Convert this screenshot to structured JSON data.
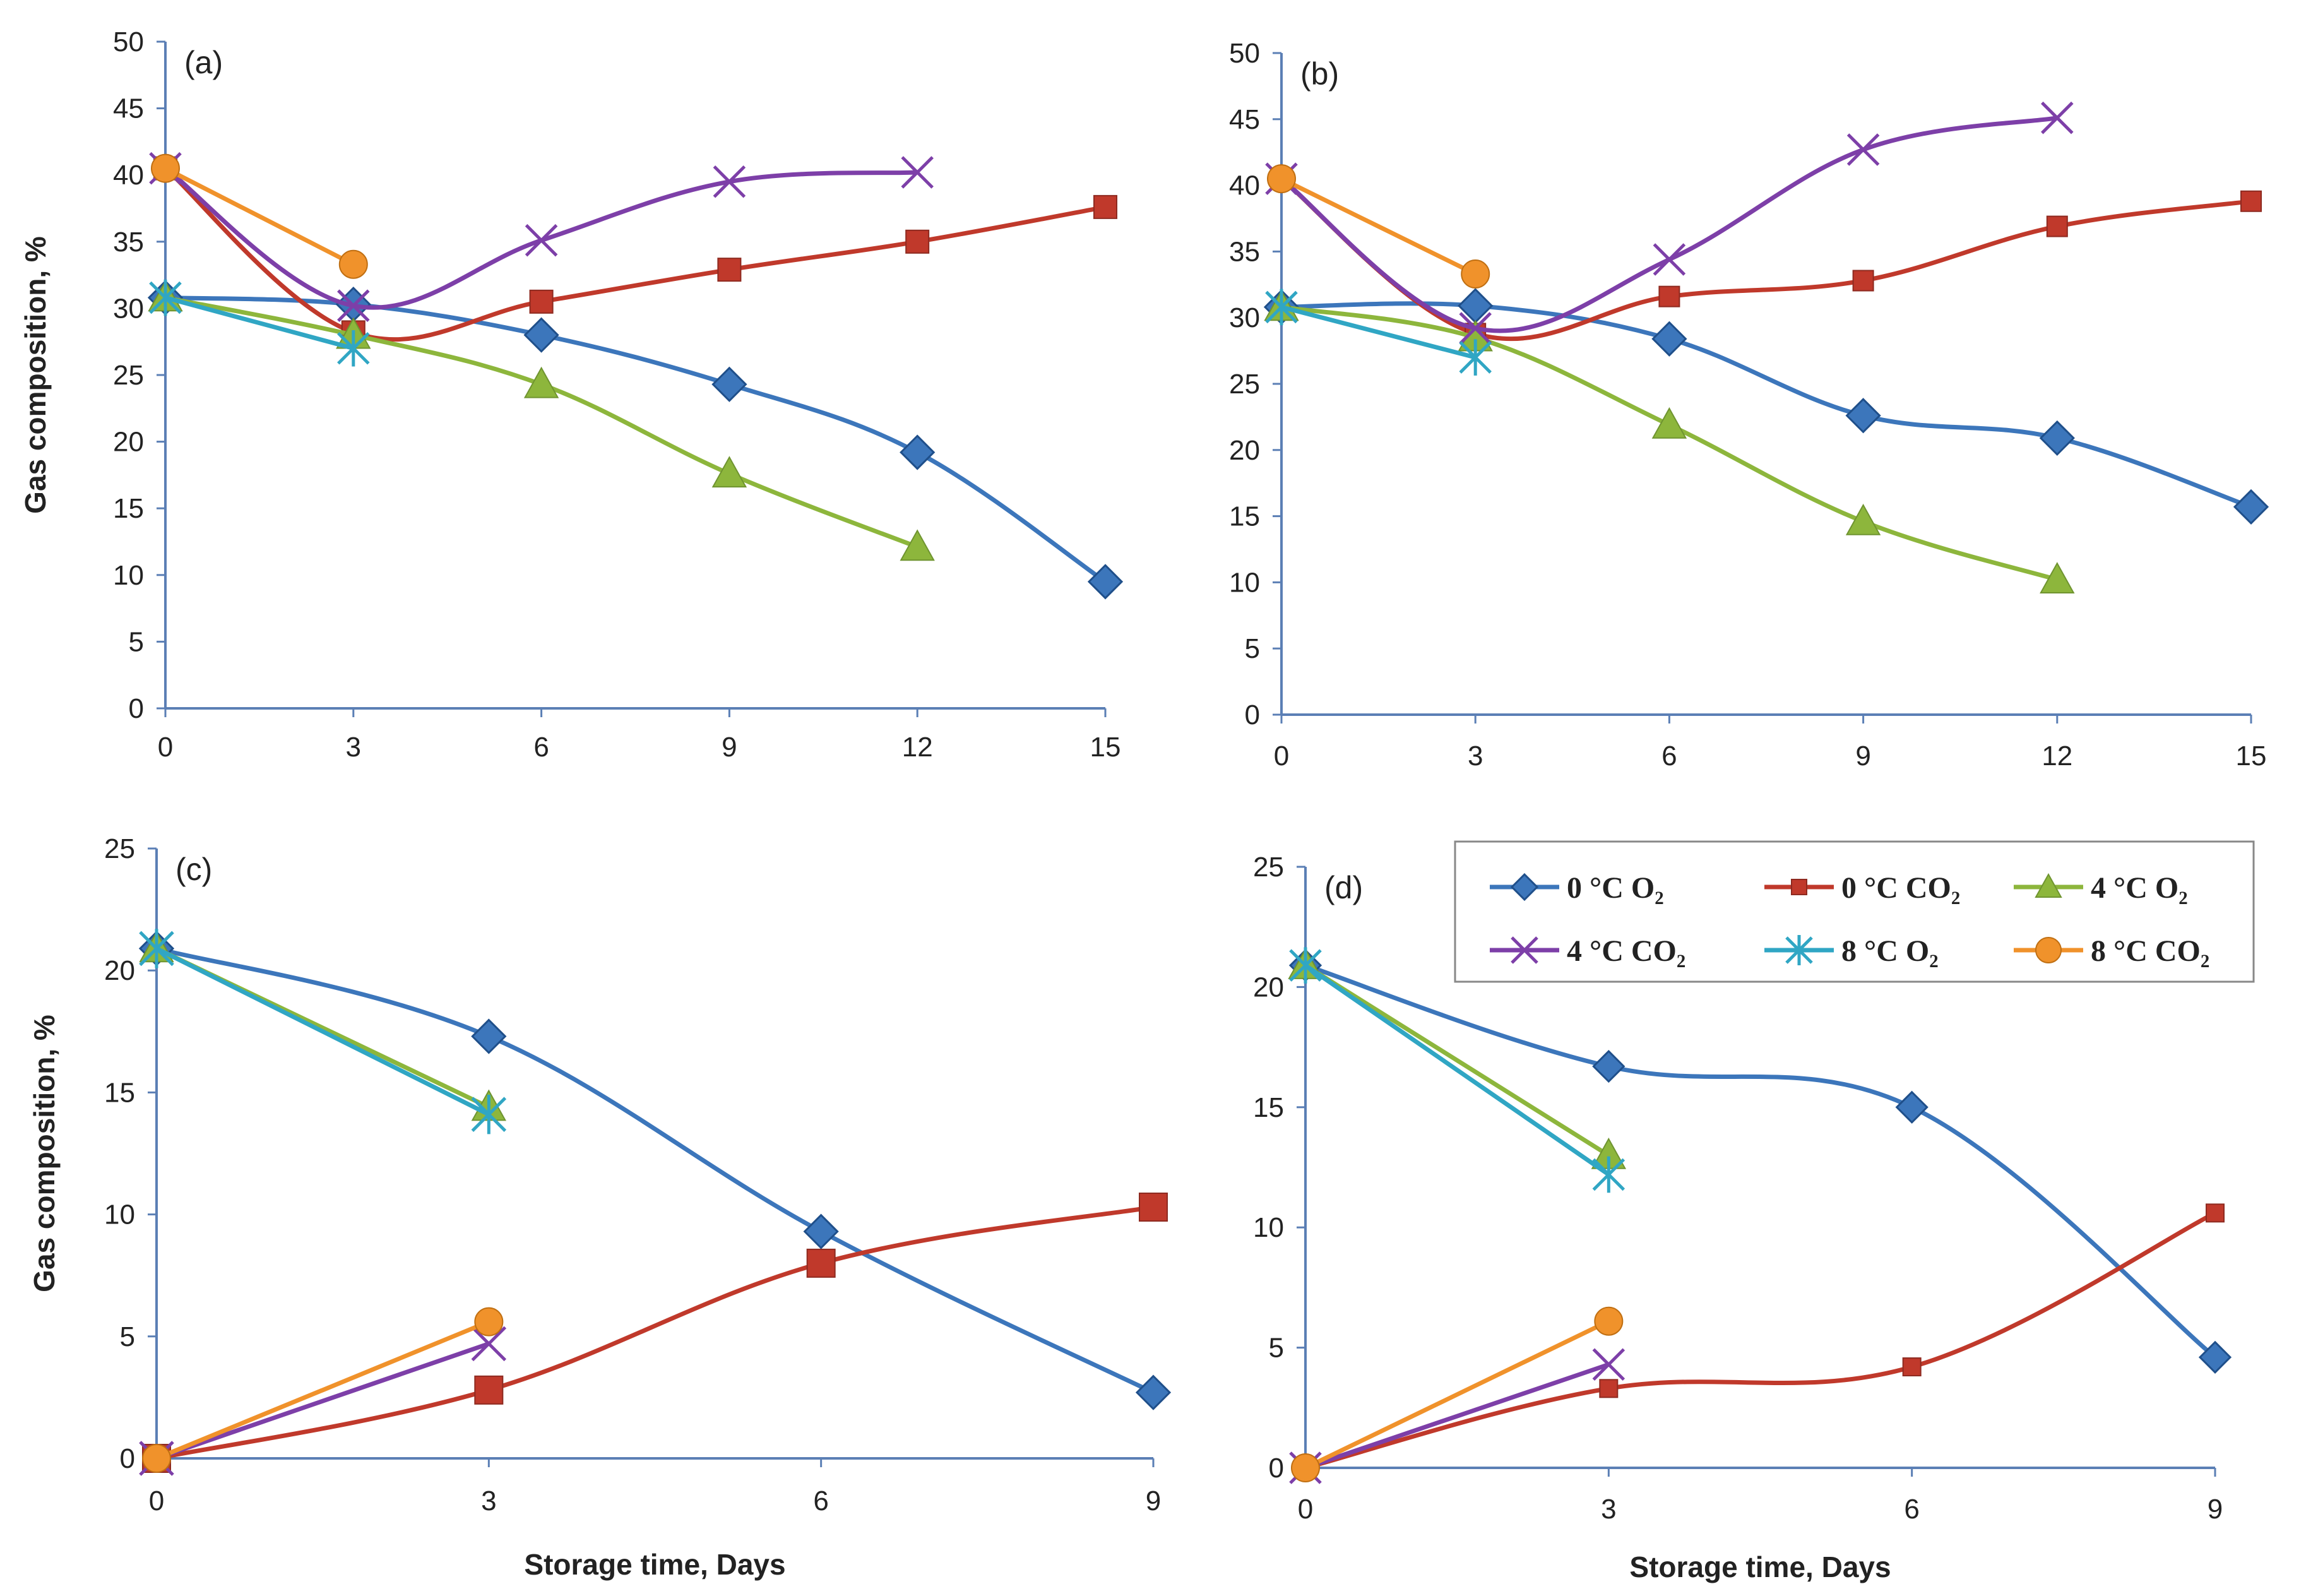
{
  "colors": {
    "s0O2": "#3c76bb",
    "s0CO2": "#c0392b",
    "s4O2": "#8db63c",
    "s4CO2": "#7d3fa8",
    "s8O2": "#30a6c4",
    "s8CO2": "#f0922b"
  },
  "legend": {
    "items": [
      {
        "key": "s0O2",
        "label": "0 °C O₂",
        "marker": "diamond"
      },
      {
        "key": "s0CO2",
        "label": "0 °C CO₂",
        "marker": "square"
      },
      {
        "key": "s4O2",
        "label": "4 °C O₂",
        "marker": "triangle"
      },
      {
        "key": "s4CO2",
        "label": "4 °C CO₂",
        "marker": "x"
      },
      {
        "key": "s8O2",
        "label": "8 °C O₂",
        "marker": "star"
      },
      {
        "key": "s8CO2",
        "label": "8 °C CO₂",
        "marker": "circle"
      }
    ]
  },
  "chart_data": [
    {
      "type": "line",
      "panel_label": "(a)",
      "ylabel": "Gas composition, %",
      "xlabel": "",
      "xlim": [
        0,
        15
      ],
      "ylim": [
        0,
        50
      ],
      "xticks": [
        0,
        3,
        6,
        9,
        12,
        15
      ],
      "yticks": [
        0,
        5,
        10,
        15,
        20,
        25,
        30,
        35,
        40,
        45,
        50
      ],
      "series": [
        {
          "key": "s0O2",
          "name": "0 °C O₂",
          "x": [
            0,
            3,
            6,
            9,
            12,
            15
          ],
          "values": [
            30.8,
            30.3,
            28.0,
            24.3,
            19.2,
            9.5
          ]
        },
        {
          "key": "s0CO2",
          "name": "0 °C CO₂",
          "x": [
            0,
            3,
            6,
            9,
            12,
            15
          ],
          "values": [
            40.5,
            28.2,
            30.5,
            32.9,
            35.0,
            37.6
          ]
        },
        {
          "key": "s4O2",
          "name": "4 °C O₂",
          "x": [
            0,
            3,
            6,
            9,
            12
          ],
          "values": [
            30.8,
            28.0,
            24.3,
            17.6,
            12.1
          ]
        },
        {
          "key": "s4CO2",
          "name": "4 °C CO₂",
          "x": [
            0,
            3,
            6,
            9,
            12
          ],
          "values": [
            40.5,
            30.2,
            35.1,
            39.5,
            40.2
          ]
        },
        {
          "key": "s8O2",
          "name": "8 °C O₂",
          "x": [
            0,
            3
          ],
          "values": [
            30.8,
            27.0
          ]
        },
        {
          "key": "s8CO2",
          "name": "8 °C CO₂",
          "x": [
            0,
            3
          ],
          "values": [
            40.5,
            33.3
          ]
        }
      ]
    },
    {
      "type": "line",
      "panel_label": "(b)",
      "ylabel": "",
      "xlabel": "",
      "xlim": [
        0,
        15
      ],
      "ylim": [
        0,
        50
      ],
      "xticks": [
        0,
        3,
        6,
        9,
        12,
        15
      ],
      "yticks": [
        0,
        5,
        10,
        15,
        20,
        25,
        30,
        35,
        40,
        45,
        50
      ],
      "series": [
        {
          "key": "s0O2",
          "name": "0 °C O₂",
          "x": [
            0,
            3,
            6,
            9,
            12,
            15
          ],
          "values": [
            30.8,
            30.9,
            28.4,
            22.6,
            20.9,
            15.7
          ]
        },
        {
          "key": "s0CO2",
          "name": "0 °C CO₂",
          "x": [
            0,
            3,
            6,
            9,
            12,
            15
          ],
          "values": [
            40.5,
            28.8,
            31.6,
            32.8,
            36.9,
            38.8
          ]
        },
        {
          "key": "s4O2",
          "name": "4 °C O₂",
          "x": [
            0,
            3,
            6,
            9,
            12
          ],
          "values": [
            30.8,
            28.5,
            21.9,
            14.6,
            10.2
          ]
        },
        {
          "key": "s4CO2",
          "name": "4 °C CO₂",
          "x": [
            0,
            3,
            6,
            9,
            12
          ],
          "values": [
            40.5,
            29.2,
            34.4,
            42.7,
            45.1
          ]
        },
        {
          "key": "s8O2",
          "name": "8 °C O₂",
          "x": [
            0,
            3
          ],
          "values": [
            30.8,
            27.0
          ]
        },
        {
          "key": "s8CO2",
          "name": "8 °C CO₂",
          "x": [
            0,
            3
          ],
          "values": [
            40.5,
            33.3
          ]
        }
      ]
    },
    {
      "type": "line",
      "panel_label": "(c)",
      "ylabel": "Gas composition, %",
      "xlabel": "Storage time, Days",
      "xlim": [
        0,
        9
      ],
      "ylim": [
        0,
        25
      ],
      "xticks": [
        0,
        3,
        6,
        9
      ],
      "yticks": [
        0,
        5,
        10,
        15,
        20,
        25
      ],
      "series": [
        {
          "key": "s0O2",
          "name": "0 °C O₂",
          "x": [
            0,
            3,
            6,
            9
          ],
          "values": [
            20.9,
            17.3,
            9.3,
            2.7
          ]
        },
        {
          "key": "s0CO2",
          "name": "0 °C CO₂",
          "x": [
            0,
            3,
            6,
            9
          ],
          "values": [
            0.0,
            2.8,
            8.0,
            10.3
          ]
        },
        {
          "key": "s4O2",
          "name": "4 °C O₂",
          "x": [
            0,
            3
          ],
          "values": [
            20.9,
            14.4
          ]
        },
        {
          "key": "s4CO2",
          "name": "4 °C CO₂",
          "x": [
            0,
            3
          ],
          "values": [
            0.0,
            4.7
          ]
        },
        {
          "key": "s8O2",
          "name": "8 °C O₂",
          "x": [
            0,
            3
          ],
          "values": [
            20.9,
            14.1
          ]
        },
        {
          "key": "s8CO2",
          "name": "8 °C CO₂",
          "x": [
            0,
            3
          ],
          "values": [
            0.0,
            5.6
          ]
        }
      ]
    },
    {
      "type": "line",
      "panel_label": "(d)",
      "ylabel": "",
      "xlabel": "Storage time, Days",
      "xlim": [
        0,
        9
      ],
      "ylim": [
        0,
        25
      ],
      "xticks": [
        0,
        3,
        6,
        9
      ],
      "yticks": [
        0,
        5,
        10,
        15,
        20,
        25
      ],
      "series": [
        {
          "key": "s0O2",
          "name": "0 °C O₂",
          "x": [
            0,
            3,
            6,
            9
          ],
          "values": [
            20.9,
            16.7,
            15.0,
            4.6
          ]
        },
        {
          "key": "s0CO2",
          "name": "0 °C CO₂",
          "x": [
            0,
            3,
            6,
            9
          ],
          "values": [
            0.0,
            3.3,
            4.2,
            10.6
          ]
        },
        {
          "key": "s4O2",
          "name": "4 °C O₂",
          "x": [
            0,
            3
          ],
          "values": [
            20.9,
            13.0
          ]
        },
        {
          "key": "s4CO2",
          "name": "4 °C CO₂",
          "x": [
            0,
            3
          ],
          "values": [
            0.0,
            4.3
          ]
        },
        {
          "key": "s8O2",
          "name": "8 °C O₂",
          "x": [
            0,
            3
          ],
          "values": [
            20.9,
            12.2
          ]
        },
        {
          "key": "s8CO2",
          "name": "8 °C CO₂",
          "x": [
            0,
            3
          ],
          "values": [
            0.0,
            6.1
          ]
        }
      ]
    }
  ]
}
